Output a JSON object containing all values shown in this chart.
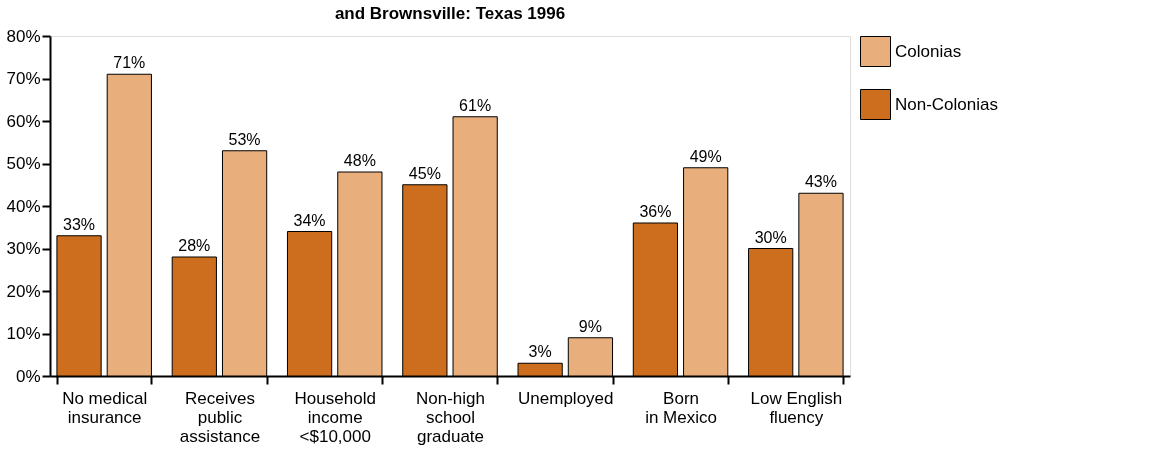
{
  "chart_data": {
    "type": "bar",
    "title": "and Brownsville: Texas 1996",
    "categories": [
      "No medical\ninsurance",
      "Receives\npublic\nassistance",
      "Household\nincome\n<$10,000",
      "Non-high\nschool\ngraduate",
      "Unemployed",
      "Born\nin Mexico",
      "Low English\nfluency"
    ],
    "series": [
      {
        "name": "Non-Colonias",
        "color": "#cc6e1e",
        "values": [
          33,
          28,
          34,
          45,
          3,
          36,
          30
        ],
        "value_labels": [
          "33%",
          "28%",
          "34%",
          "45%",
          "3%",
          "36%",
          "30%"
        ]
      },
      {
        "name": "Colonias",
        "color": "#e8ae7c",
        "values": [
          71,
          53,
          48,
          61,
          9,
          49,
          43
        ],
        "value_labels": [
          "71%",
          "53%",
          "48%",
          "61%",
          "9%",
          "49%",
          "43%"
        ]
      }
    ],
    "ylim": [
      0,
      80
    ],
    "yticks": [
      {
        "value": 0,
        "label": "0%"
      },
      {
        "value": 10,
        "label": "10%"
      },
      {
        "value": 20,
        "label": "20%"
      },
      {
        "value": 30,
        "label": "30%"
      },
      {
        "value": 40,
        "label": "40%"
      },
      {
        "value": 50,
        "label": "50%"
      },
      {
        "value": 60,
        "label": "60%"
      },
      {
        "value": 70,
        "label": "70%"
      },
      {
        "value": 80,
        "label": "80%"
      }
    ],
    "grid": false,
    "legend": "top right"
  }
}
